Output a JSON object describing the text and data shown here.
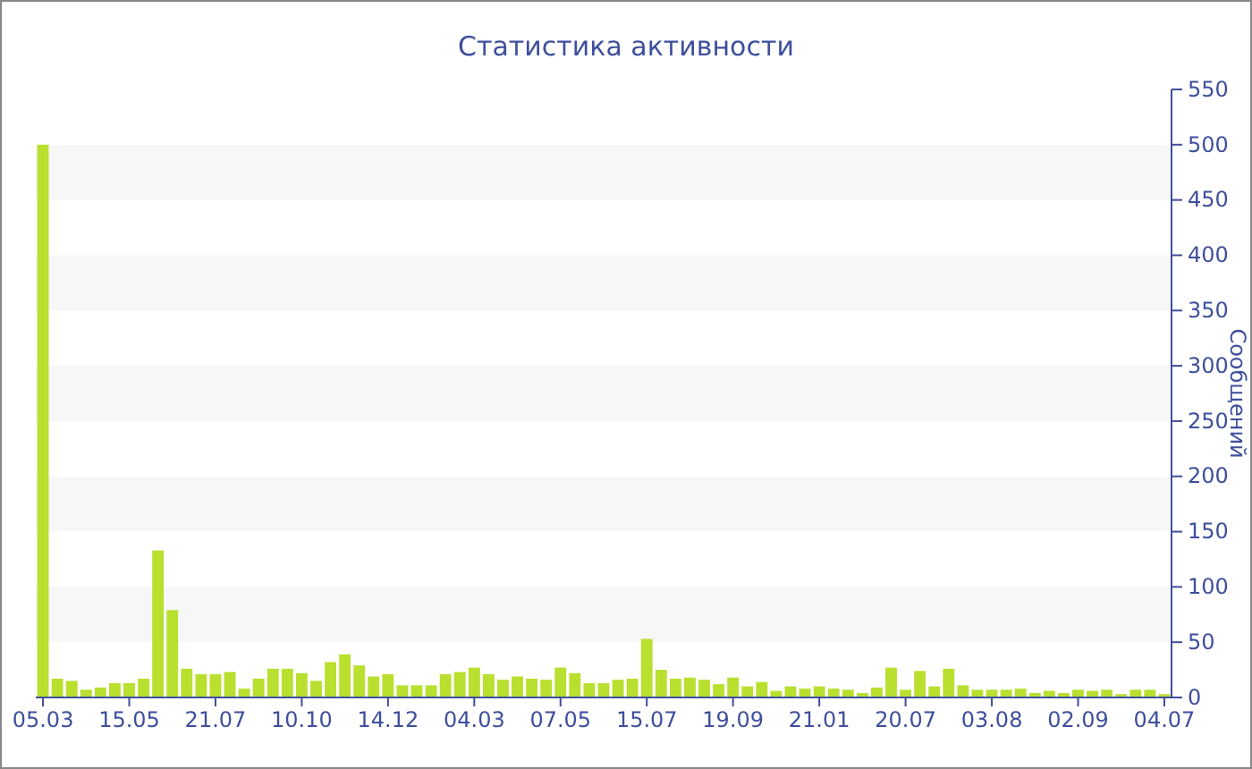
{
  "chart_data": {
    "type": "bar",
    "title": "Статистика активности",
    "y2label": "Сообщений",
    "categories": [
      "05.03",
      null,
      null,
      null,
      null,
      null,
      "15.05",
      null,
      null,
      null,
      null,
      null,
      "21.07",
      null,
      null,
      null,
      null,
      null,
      "10.10",
      null,
      null,
      null,
      null,
      null,
      "14.12",
      null,
      null,
      null,
      null,
      null,
      "04.03",
      null,
      null,
      null,
      null,
      null,
      "07.05",
      null,
      null,
      null,
      null,
      null,
      "15.07",
      null,
      null,
      null,
      null,
      null,
      "19.09",
      null,
      null,
      null,
      null,
      null,
      "21.01",
      null,
      null,
      null,
      null,
      null,
      "20.07",
      null,
      null,
      null,
      null,
      null,
      "03.08",
      null,
      null,
      null,
      null,
      null,
      "02.09",
      null,
      null,
      null,
      null,
      null,
      "04.07"
    ],
    "series": [
      {
        "color": "#b9df2f",
        "axis": "y2",
        "values": [
          500,
          17,
          15,
          7,
          9,
          13,
          13,
          17,
          133,
          79,
          26,
          21,
          21,
          23,
          8,
          17,
          26,
          26,
          22,
          15,
          32,
          39,
          29,
          19,
          21,
          11,
          11,
          11,
          21,
          23,
          27,
          21,
          16,
          19,
          17,
          16,
          27,
          22,
          13,
          13,
          16,
          17,
          53,
          25,
          17,
          18,
          16,
          12,
          18,
          10,
          14,
          6,
          10,
          8,
          10,
          8,
          7,
          4,
          9,
          27,
          7,
          24,
          10,
          26,
          11,
          7,
          7,
          7,
          8,
          4,
          6,
          4,
          7,
          6,
          7,
          3,
          7,
          7,
          3
        ]
      }
    ],
    "y2lim": [
      0,
      550
    ],
    "y2ticks": [
      0,
      50,
      100,
      150,
      200,
      250,
      300,
      350,
      400,
      450,
      500,
      550
    ],
    "bands": [
      {
        "axis": "y2",
        "from": 50,
        "to": 100,
        "color": "#f7f7f7"
      },
      {
        "axis": "y2",
        "from": 150,
        "to": 200,
        "color": "#f7f7f7"
      },
      {
        "axis": "y2",
        "from": 250,
        "to": 300,
        "color": "#f7f7f7"
      },
      {
        "axis": "y2",
        "from": 350,
        "to": 400,
        "color": "#f7f7f7"
      },
      {
        "axis": "y2",
        "from": 450,
        "to": 500,
        "color": "#f7f7f7"
      }
    ]
  }
}
